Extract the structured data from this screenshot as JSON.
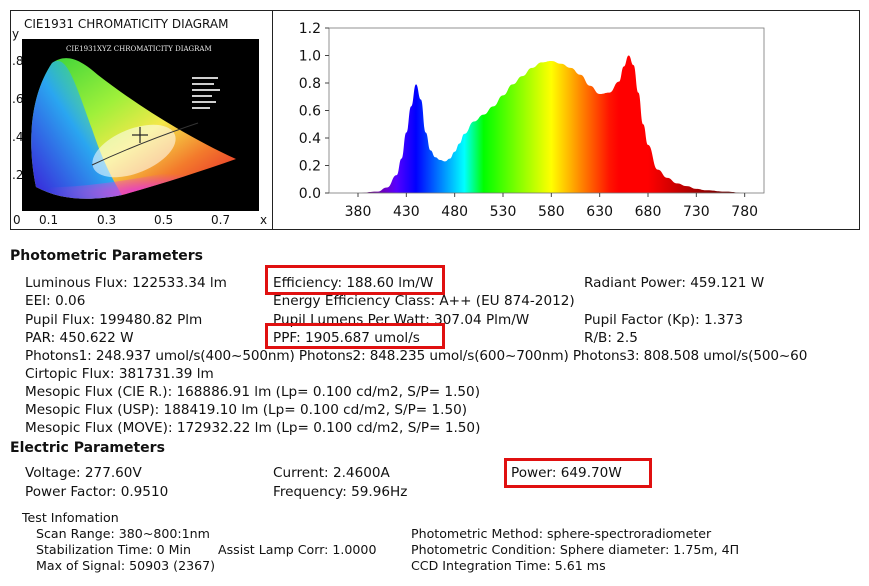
{
  "cie": {
    "title": "CIE1931 CHROMATICITY DIAGRAM",
    "inner_title": "CIE1931XYZ CHROMATICITY DIAGRAM",
    "y_label": "y",
    "x_label": "x",
    "y_ticks": [
      ".8",
      ".6",
      ".4",
      ".2"
    ],
    "x_ticks": [
      "0",
      "0.1",
      "0.3",
      "0.5",
      "0.7"
    ]
  },
  "chart_data": {
    "type": "area",
    "title": "",
    "xlabel": "",
    "ylabel": "",
    "xlim": [
      350,
      800
    ],
    "ylim": [
      0,
      1.2
    ],
    "x_ticks": [
      380,
      430,
      480,
      530,
      580,
      630,
      680,
      730,
      780
    ],
    "y_ticks": [
      "0.0",
      "0.2",
      "0.4",
      "0.6",
      "0.8",
      "1.0",
      "1.2"
    ],
    "grid": false,
    "series": [
      {
        "x": [
          380,
          400,
          410,
          420,
          425,
          430,
          435,
          440,
          445,
          450,
          455,
          460,
          465,
          470,
          475,
          480,
          485,
          490,
          500,
          510,
          520,
          530,
          540,
          550,
          560,
          570,
          580,
          590,
          600,
          610,
          620,
          630,
          640,
          650,
          655,
          660,
          665,
          670,
          675,
          680,
          690,
          700,
          710,
          720,
          730,
          740,
          760,
          780
        ],
        "values": [
          0.0,
          0.01,
          0.04,
          0.13,
          0.25,
          0.44,
          0.63,
          0.79,
          0.68,
          0.44,
          0.31,
          0.26,
          0.24,
          0.23,
          0.25,
          0.3,
          0.36,
          0.43,
          0.52,
          0.57,
          0.63,
          0.71,
          0.79,
          0.85,
          0.91,
          0.95,
          0.96,
          0.94,
          0.91,
          0.86,
          0.78,
          0.72,
          0.73,
          0.81,
          0.92,
          1.0,
          0.93,
          0.73,
          0.5,
          0.35,
          0.17,
          0.11,
          0.07,
          0.05,
          0.03,
          0.02,
          0.01,
          0.0
        ]
      }
    ]
  },
  "photometric": {
    "heading": "Photometric Parameters",
    "luminous_flux": "Luminous Flux: 122533.34 lm",
    "efficiency": "Efficiency: 188.60 lm/W",
    "radiant_power": "Radiant Power: 459.121 W",
    "eei": "EEI:  0.06",
    "energy_class": "Energy Efficiency Class: A++ (EU 874-2012)",
    "pupil_flux": "Pupil Flux: 199480.82 Plm",
    "pupil_lumens": "Pupil Lumens Per Watt: 307.04 Plm/W",
    "pupil_factor": "Pupil Factor (Kp): 1.373",
    "par": "PAR: 450.622 W",
    "ppf": "PPF: 1905.687 umol/s",
    "rb": "R/B: 2.5",
    "photons": "Photons1: 248.937 umol/s(400~500nm) Photons2: 848.235 umol/s(600~700nm) Photons3: 808.508 umol/s(500~60",
    "cirtopic": "Cirtopic Flux: 381731.39 lm",
    "mesopic_cie": "Mesopic Flux (CIE R.): 168886.91 lm (Lp= 0.100 cd/m2, S/P= 1.50)",
    "mesopic_usp": "Mesopic Flux (USP): 188419.10 lm (Lp= 0.100 cd/m2, S/P= 1.50)",
    "mesopic_move": "Mesopic Flux (MOVE): 172932.22 lm (Lp= 0.100 cd/m2, S/P= 1.50)"
  },
  "electric": {
    "heading": "Electric Parameters",
    "voltage": "Voltage: 277.60V",
    "current": "Current: 2.4600A",
    "power": "Power: 649.70W",
    "power_factor": "Power Factor: 0.9510",
    "frequency": "Frequency: 59.96Hz"
  },
  "test": {
    "heading": "Test Infomation",
    "scan_range": "Scan Range: 380~800:1nm",
    "stabilization": "Stabilization Time: 0 Min",
    "assist": "Assist Lamp Corr: 1.0000",
    "max_signal": "Max of Signal: 50903 (2367)",
    "photometric_method": "Photometric Method: sphere-spectroradiometer",
    "photometric_condition": "Photometric Condition: Sphere diameter: 1.75m, 4Π",
    "ccd": "CCD Integration Time: 5.61 ms"
  },
  "colors": {
    "highlight": "#e01010",
    "frame": "#222222"
  }
}
